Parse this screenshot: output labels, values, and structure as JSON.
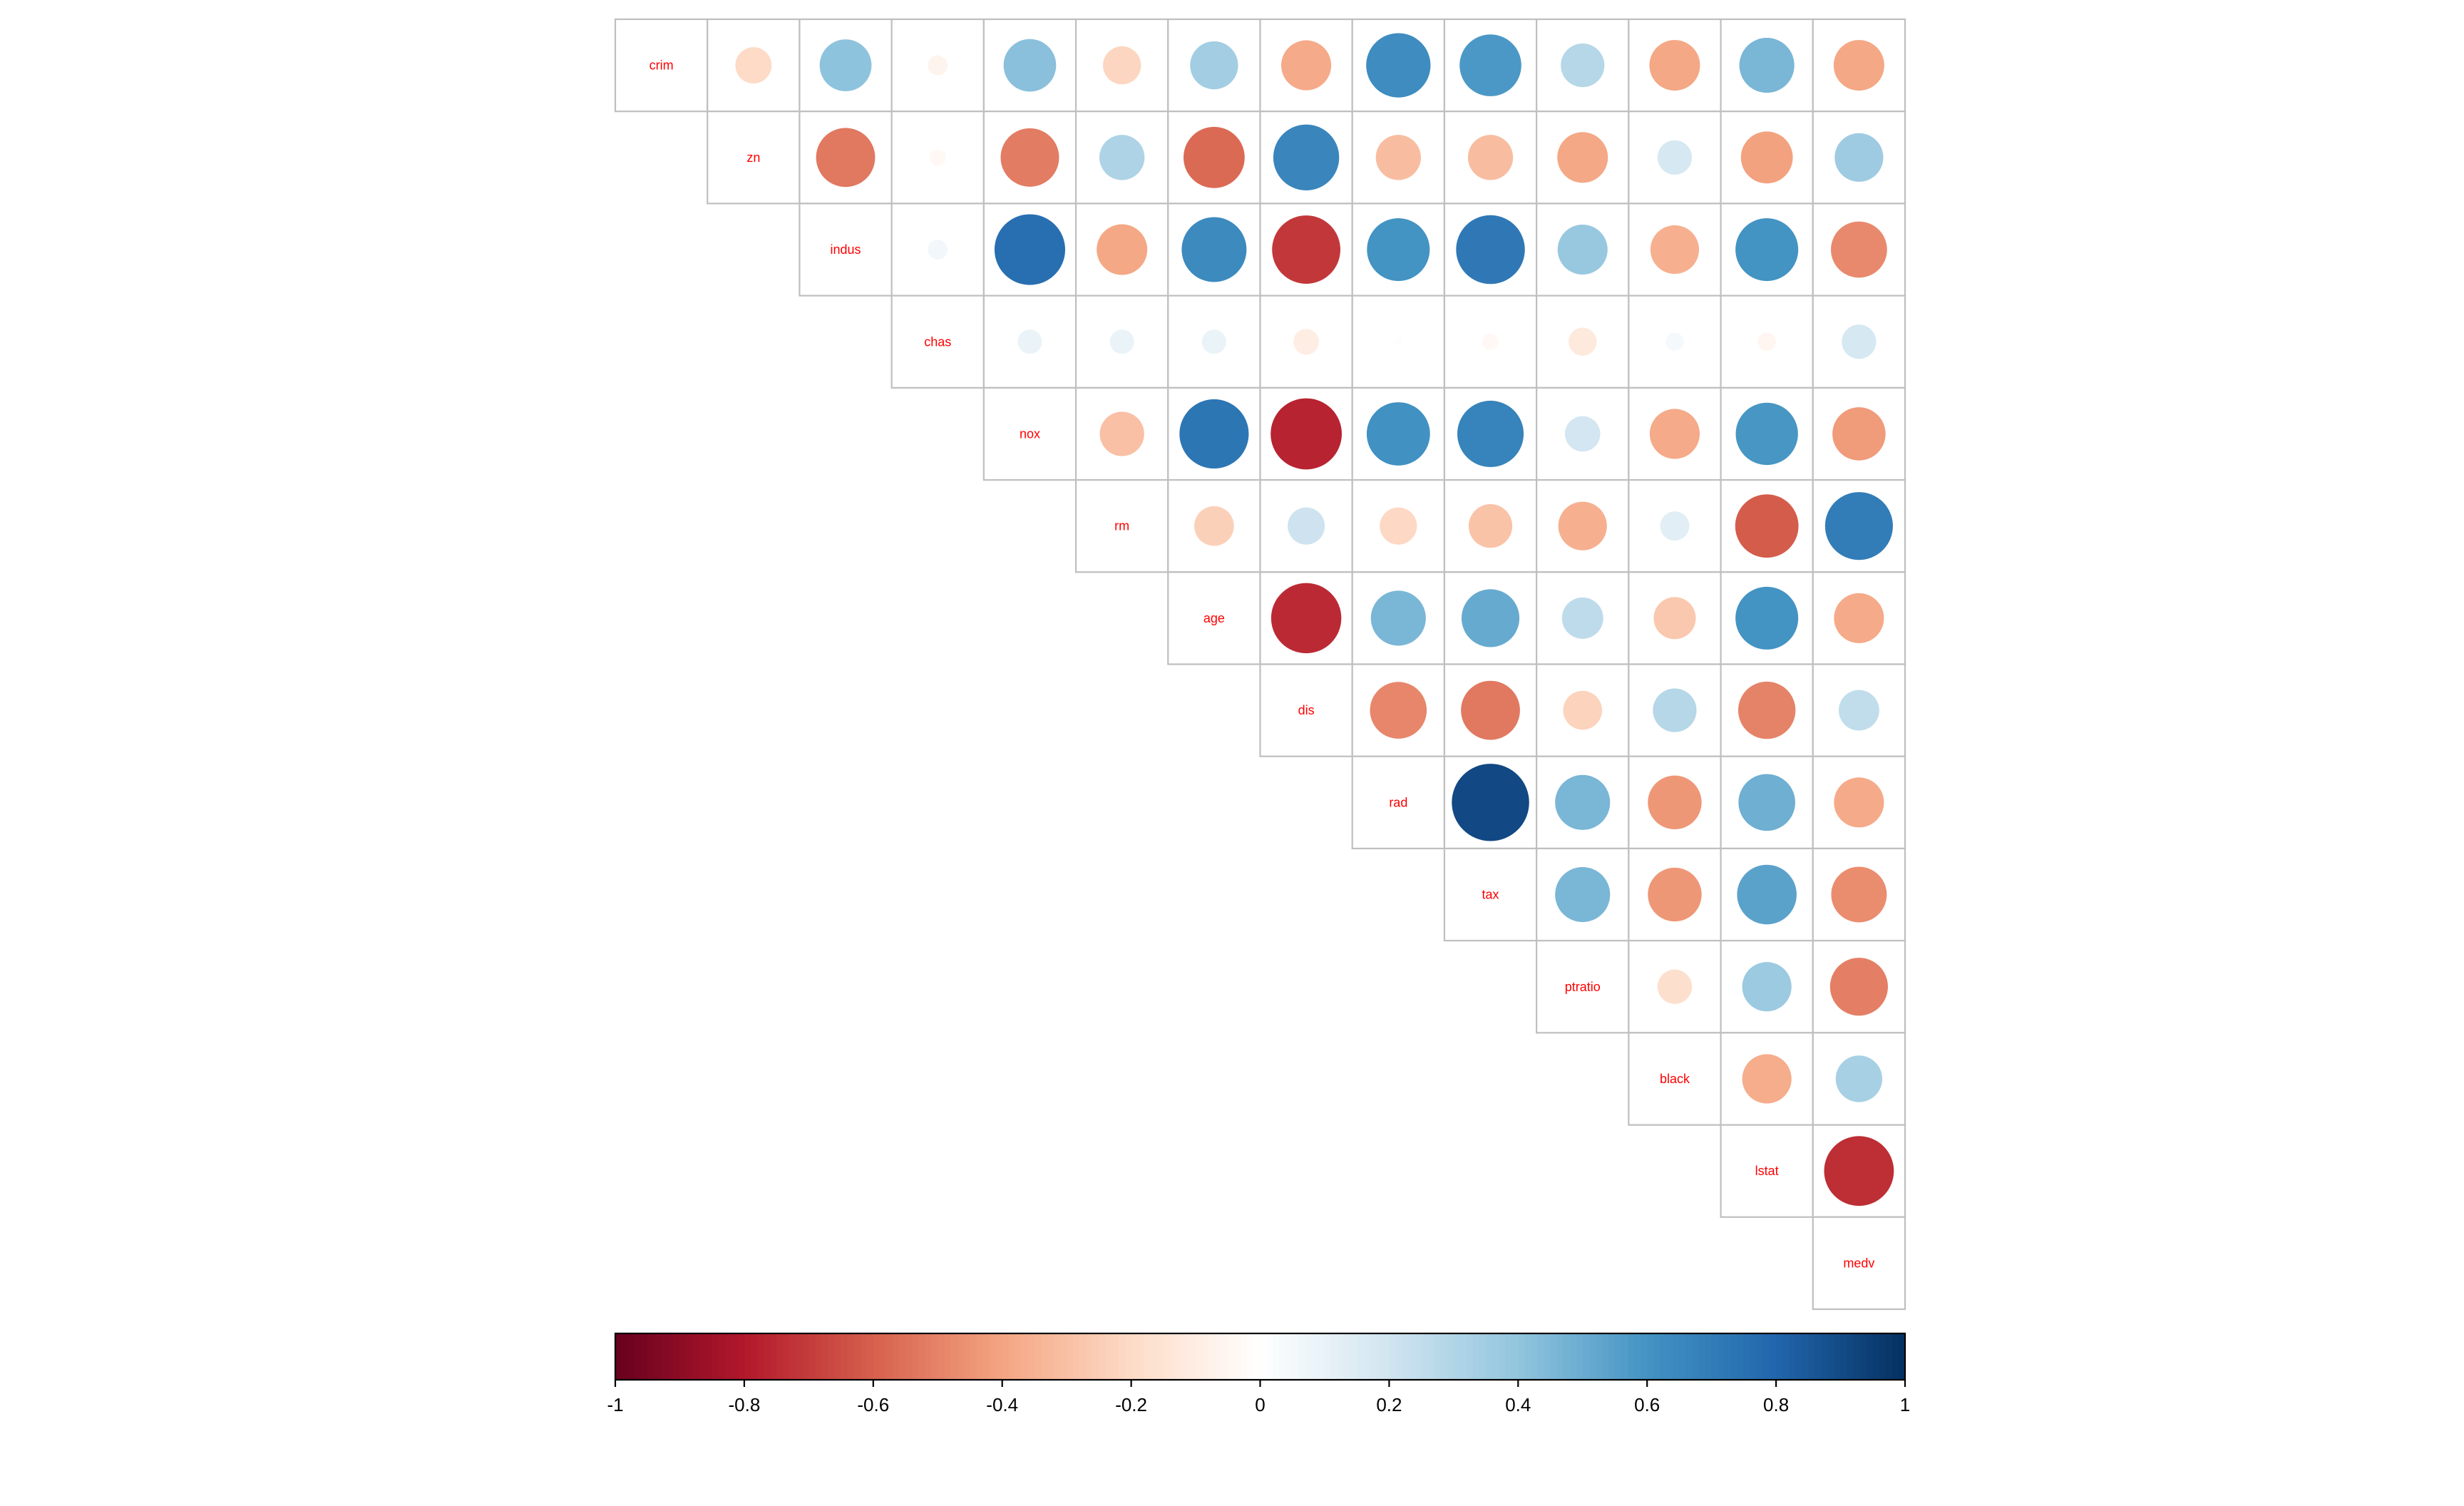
{
  "chart_data": {
    "type": "heatmap",
    "style": "correlation circles, upper triangle with diagonal labels",
    "title": "",
    "variables": [
      "crim",
      "zn",
      "indus",
      "chas",
      "nox",
      "rm",
      "age",
      "dis",
      "rad",
      "tax",
      "ptratio",
      "black",
      "lstat",
      "medv"
    ],
    "matrix": [
      [
        1.0,
        -0.2,
        0.41,
        -0.06,
        0.42,
        -0.22,
        0.35,
        -0.38,
        0.63,
        0.58,
        0.29,
        -0.39,
        0.46,
        -0.39
      ],
      [
        -0.2,
        1.0,
        -0.53,
        -0.04,
        -0.52,
        0.31,
        -0.57,
        0.66,
        -0.31,
        -0.31,
        -0.39,
        0.18,
        -0.41,
        0.36
      ],
      [
        0.41,
        -0.53,
        1.0,
        0.06,
        0.76,
        -0.39,
        0.64,
        -0.71,
        0.6,
        0.72,
        0.38,
        -0.36,
        0.6,
        -0.48
      ],
      [
        -0.06,
        -0.04,
        0.06,
        1.0,
        0.09,
        0.09,
        0.09,
        -0.1,
        -0.01,
        -0.04,
        -0.12,
        0.05,
        -0.05,
        0.18
      ],
      [
        0.42,
        -0.52,
        0.76,
        0.09,
        1.0,
        -0.3,
        0.73,
        -0.77,
        0.61,
        0.67,
        0.19,
        -0.38,
        0.59,
        -0.43
      ],
      [
        -0.22,
        0.31,
        -0.39,
        0.09,
        -0.3,
        1.0,
        -0.24,
        0.21,
        -0.21,
        -0.29,
        -0.36,
        0.13,
        -0.61,
        0.7
      ],
      [
        0.35,
        -0.57,
        0.64,
        0.09,
        0.73,
        -0.24,
        1.0,
        -0.75,
        0.46,
        0.51,
        0.26,
        -0.27,
        0.6,
        -0.38
      ],
      [
        -0.38,
        0.66,
        -0.71,
        -0.1,
        -0.77,
        0.21,
        -0.75,
        1.0,
        -0.49,
        -0.53,
        -0.23,
        0.29,
        -0.5,
        0.25
      ],
      [
        0.63,
        -0.31,
        0.6,
        -0.01,
        0.61,
        -0.21,
        0.46,
        -0.49,
        1.0,
        0.91,
        0.46,
        -0.44,
        0.49,
        -0.38
      ],
      [
        0.58,
        -0.31,
        0.72,
        -0.04,
        0.67,
        -0.29,
        0.51,
        -0.53,
        0.91,
        1.0,
        0.46,
        -0.44,
        0.54,
        -0.47
      ],
      [
        0.29,
        -0.39,
        0.38,
        -0.12,
        0.19,
        -0.36,
        0.26,
        -0.23,
        0.46,
        0.46,
        1.0,
        -0.18,
        0.37,
        -0.51
      ],
      [
        -0.39,
        0.18,
        -0.36,
        0.05,
        -0.38,
        0.13,
        -0.27,
        0.29,
        -0.44,
        -0.44,
        -0.18,
        1.0,
        -0.37,
        0.33
      ],
      [
        0.46,
        -0.41,
        0.6,
        -0.05,
        0.59,
        -0.61,
        0.6,
        -0.5,
        0.49,
        0.54,
        0.37,
        -0.37,
        1.0,
        -0.74
      ],
      [
        -0.39,
        0.36,
        -0.48,
        0.18,
        -0.43,
        0.7,
        -0.38,
        0.25,
        -0.38,
        -0.47,
        -0.51,
        0.33,
        -0.74,
        1.0
      ]
    ],
    "colorbar": {
      "range": [
        -1,
        1
      ],
      "ticks": [
        -1,
        -0.8,
        -0.6,
        -0.4,
        -0.2,
        0,
        0.2,
        0.4,
        0.6,
        0.8,
        1
      ],
      "tick_labels": [
        "-1",
        "-0.8",
        "-0.6",
        "-0.4",
        "-0.2",
        "0",
        "0.2",
        "0.4",
        "0.6",
        "0.8",
        "1"
      ],
      "placement": "bottom"
    },
    "palette": [
      "#67001F",
      "#B2182B",
      "#D6604D",
      "#F4A582",
      "#FDDBC7",
      "#FFFFFF",
      "#D1E5F0",
      "#92C5DE",
      "#4393C3",
      "#2166AC",
      "#053061"
    ],
    "label_color": "#FF0000",
    "grid_color": "#BFBFBF"
  }
}
